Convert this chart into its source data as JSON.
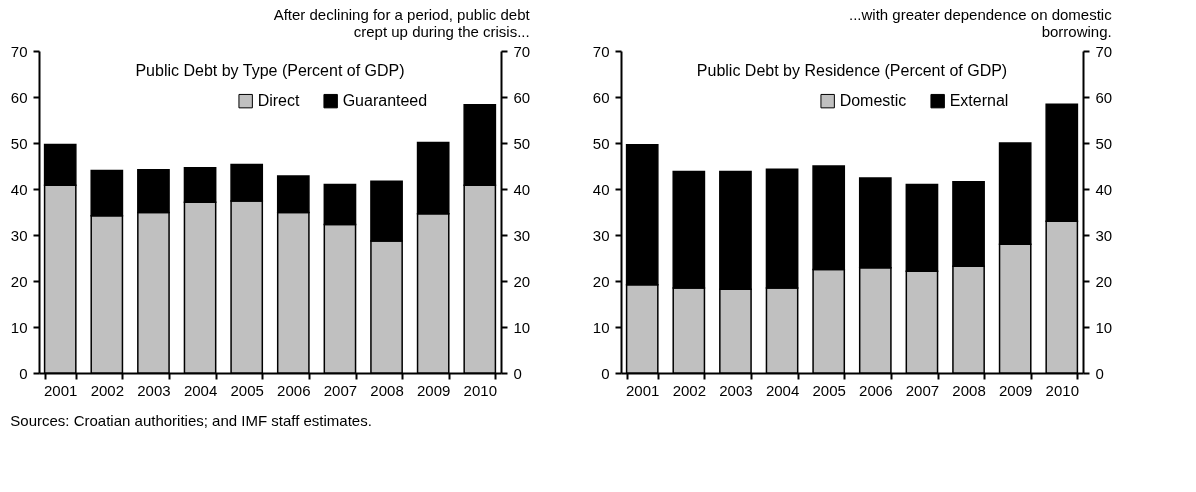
{
  "chart_data": [
    {
      "type": "bar",
      "title": "After declining for a period, public debt crept up during the crisis...",
      "subtitle": "Public Debt by Type (Percent of GDP)",
      "categories": [
        "2001",
        "2002",
        "2003",
        "2004",
        "2005",
        "2006",
        "2007",
        "2008",
        "2009",
        "2010"
      ],
      "stacked": true,
      "series": [
        {
          "name": "Direct",
          "color": "#c0c0c0",
          "values": [
            40.8,
            34.2,
            34.9,
            37.1,
            37.4,
            34.9,
            32.3,
            28.7,
            34.6,
            40.8
          ]
        },
        {
          "name": "Guaranteed",
          "color": "#000000",
          "values": [
            8.9,
            9.8,
            9.3,
            7.5,
            7.9,
            7.9,
            8.7,
            13.0,
            15.5,
            17.5
          ]
        }
      ],
      "ylim": [
        0,
        70
      ],
      "yticks": [
        0,
        10,
        20,
        30,
        40,
        50,
        60,
        70
      ],
      "y2lim": [
        0,
        70
      ],
      "y2ticks": [
        0,
        10,
        20,
        30,
        40,
        50,
        60,
        70
      ],
      "legend": "top right",
      "annotations": [
        "Sources: Croatian authorities; and IMF staff estimates."
      ]
    },
    {
      "type": "bar",
      "title": "...with greater dependence on domestic borrowing.",
      "subtitle": "Public Debt by Residence (Percent of GDP)",
      "categories": [
        "2001",
        "2002",
        "2003",
        "2004",
        "2005",
        "2006",
        "2007",
        "2008",
        "2009",
        "2010"
      ],
      "stacked": true,
      "series": [
        {
          "name": "Domestic",
          "color": "#c0c0c0",
          "values": [
            19.2,
            18.5,
            18.2,
            18.5,
            22.5,
            22.9,
            22.1,
            23.2,
            28.0,
            33.0
          ]
        },
        {
          "name": "External",
          "color": "#000000",
          "values": [
            30.4,
            25.3,
            25.6,
            25.8,
            22.5,
            19.5,
            18.9,
            18.4,
            22.0,
            25.4
          ]
        }
      ],
      "ylim": [
        0,
        70
      ],
      "yticks": [
        0,
        10,
        20,
        30,
        40,
        50,
        60,
        70
      ],
      "y2lim": [
        0,
        70
      ],
      "y2ticks": [
        0,
        10,
        20,
        30,
        40,
        50,
        60,
        70
      ],
      "legend": "top right"
    }
  ]
}
